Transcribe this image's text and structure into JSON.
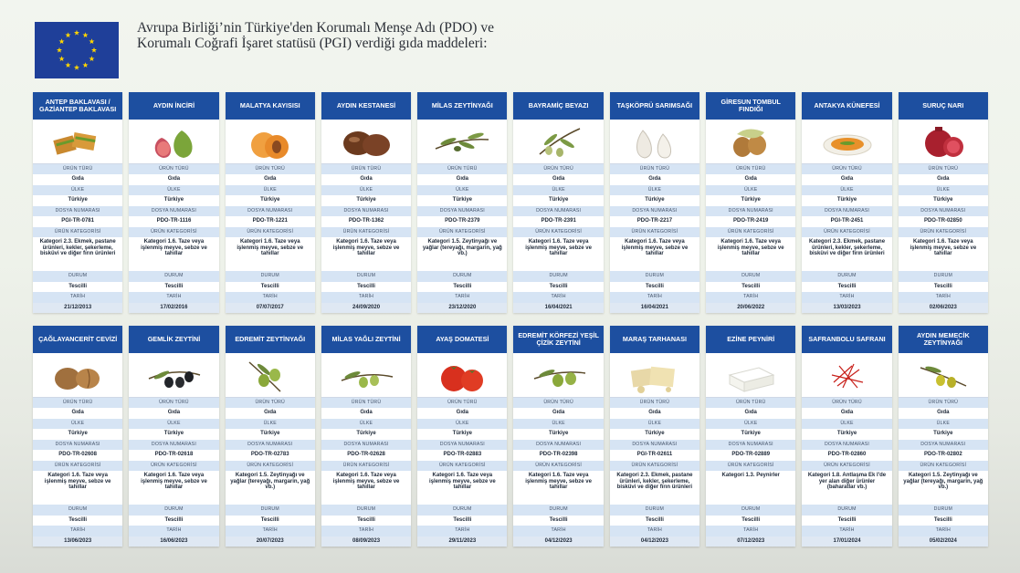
{
  "header": {
    "title": "Avrupa Birliği’nin Türkiye'den Korumalı Menşe Adı (PDO) ve Korumalı Coğrafi İşaret statüsü (PGI) verdiği gıda maddeleri:",
    "flag": "eu-flag"
  },
  "labels": {
    "type": "ÜRÜN TÜRÜ",
    "country": "ÜLKE",
    "file": "DOSYA NUMARASI",
    "category": "ÜRÜN KATEGORİSİ",
    "status": "DURUM",
    "date": "TARİH"
  },
  "products": [
    {
      "name": "ANTEP BAKLAVASI / GAZİANTEP BAKLAVASI",
      "icon": "baklava-icon",
      "type": "Gıda",
      "country": "Türkiye",
      "file": "PGI-TR-0781",
      "category": "Kategori 2.3. Ekmek, pastane ürünleri, kekler, şekerleme, bisküvi ve diğer fırın ürünleri",
      "status": "Tescilli",
      "date": "21/12/2013"
    },
    {
      "name": "AYDIN İNCİRİ",
      "icon": "fig-icon",
      "type": "Gıda",
      "country": "Türkiye",
      "file": "PDO-TR-1116",
      "category": "Kategori 1.6. Taze veya işlenmiş meyve, sebze ve tahıllar",
      "status": "Tescilli",
      "date": "17/02/2016"
    },
    {
      "name": "MALATYA KAYISISI",
      "icon": "apricot-icon",
      "type": "Gıda",
      "country": "Türkiye",
      "file": "PDO-TR-1221",
      "category": "Kategori 1.6. Taze veya işlenmiş meyve, sebze ve tahıllar",
      "status": "Tescilli",
      "date": "07/07/2017"
    },
    {
      "name": "AYDIN KESTANESİ",
      "icon": "chestnut-icon",
      "type": "Gıda",
      "country": "Türkiye",
      "file": "PDO-TR-1362",
      "category": "Kategori 1.6. Taze veya işlenmiş meyve, sebze ve tahıllar",
      "status": "Tescilli",
      "date": "24/09/2020"
    },
    {
      "name": "MİLAS ZEYTİNYAĞI",
      "icon": "olive-branch-icon",
      "type": "Gıda",
      "country": "Türkiye",
      "file": "PDO-TR-2379",
      "category": "Kategori 1.5. Zeytinyağı ve yağlar (tereyağı, margarin, yağ vb.)",
      "status": "Tescilli",
      "date": "23/12/2020"
    },
    {
      "name": "BAYRAMİÇ BEYAZI",
      "icon": "white-olive-icon",
      "type": "Gıda",
      "country": "Türkiye",
      "file": "PDO-TR-2391",
      "category": "Kategori 1.6. Taze veya işlenmiş meyve, sebze ve tahıllar",
      "status": "Tescilli",
      "date": "16/04/2021"
    },
    {
      "name": "TAŞKÖPRÜ SARIMSAĞI",
      "icon": "garlic-icon",
      "type": "Gıda",
      "country": "Türkiye",
      "file": "PDO-TR-2217",
      "category": "Kategori 1.6. Taze veya işlenmiş meyve, sebze ve tahıllar",
      "status": "Tescilli",
      "date": "16/04/2021"
    },
    {
      "name": "GİRESUN TOMBUL FINDIĞI",
      "icon": "hazelnut-icon",
      "type": "Gıda",
      "country": "Türkiye",
      "file": "PDO-TR-2419",
      "category": "Kategori 1.6. Taze veya işlenmiş meyve, sebze ve tahıllar",
      "status": "Tescilli",
      "date": "20/06/2022"
    },
    {
      "name": "ANTAKYA KÜNEFESİ",
      "icon": "kunefe-icon",
      "type": "Gıda",
      "country": "Türkiye",
      "file": "PGI-TR-2451",
      "category": "Kategori 2.3. Ekmek, pastane ürünleri, kekler, şekerleme, bisküvi ve diğer fırın ürünleri",
      "status": "Tescilli",
      "date": "13/03/2023"
    },
    {
      "name": "SURUÇ NARI",
      "icon": "pomegranate-icon",
      "type": "Gıda",
      "country": "Türkiye",
      "file": "PDO-TR-02850",
      "category": "Kategori 1.6. Taze veya işlenmiş meyve, sebze ve tahıllar",
      "status": "Tescilli",
      "date": "02/06/2023"
    },
    {
      "name": "ÇAĞLAYANCERİT CEVİZİ",
      "icon": "walnut-icon",
      "type": "Gıda",
      "country": "Türkiye",
      "file": "PDO-TR-02608",
      "category": "Kategori 1.6. Taze veya işlenmiş meyve, sebze ve tahıllar",
      "status": "Tescilli",
      "date": "13/06/2023"
    },
    {
      "name": "GEMLİK ZEYTİNİ",
      "icon": "black-olive-icon",
      "type": "Gıda",
      "country": "Türkiye",
      "file": "PDO-TR-02618",
      "category": "Kategori 1.6. Taze veya işlenmiş meyve, sebze ve tahıllar",
      "status": "Tescilli",
      "date": "16/06/2023"
    },
    {
      "name": "EDREMİT ZEYTİNYAĞI",
      "icon": "green-olive-icon",
      "type": "Gıda",
      "country": "Türkiye",
      "file": "PDO-TR-02783",
      "category": "Kategori 1.5. Zeytinyağı ve yağlar (tereyağı, margarin, yağ vb.)",
      "status": "Tescilli",
      "date": "20/07/2023"
    },
    {
      "name": "MİLAS YAĞLI ZEYTİNİ",
      "icon": "olive-icon",
      "type": "Gıda",
      "country": "Türkiye",
      "file": "PDO-TR-02628",
      "category": "Kategori 1.6. Taze veya işlenmiş meyve, sebze ve tahıllar",
      "status": "Tescilli",
      "date": "08/09/2023"
    },
    {
      "name": "AYAŞ DOMATESİ",
      "icon": "tomato-icon",
      "type": "Gıda",
      "country": "Türkiye",
      "file": "PDO-TR-02883",
      "category": "Kategori 1.6. Taze veya işlenmiş meyve, sebze ve tahıllar",
      "status": "Tescilli",
      "date": "29/11/2023"
    },
    {
      "name": "EDREMİT KÖRFEZİ YEŞİL ÇİZİK ZEYTİNİ",
      "icon": "cracked-olive-icon",
      "type": "Gıda",
      "country": "Türkiye",
      "file": "PDO-TR-02398",
      "category": "Kategori 1.6. Taze veya işlenmiş meyve, sebze ve tahıllar",
      "status": "Tescilli",
      "date": "04/12/2023"
    },
    {
      "name": "MARAŞ TARHANASI",
      "icon": "tarhana-icon",
      "type": "Gıda",
      "country": "Türkiye",
      "file": "PGI-TR-02611",
      "category": "Kategori 2.3. Ekmek, pastane ürünleri, kekler, şekerleme, bisküvi ve diğer fırın ürünleri",
      "status": "Tescilli",
      "date": "04/12/2023"
    },
    {
      "name": "EZİNE PEYNİRİ",
      "icon": "cheese-icon",
      "type": "Gıda",
      "country": "Türkiye",
      "file": "PDO-TR-02889",
      "category": "Kategori 1.3. Peynirler",
      "status": "Tescilli",
      "date": "07/12/2023"
    },
    {
      "name": "SAFRANBOLU SAFRANI",
      "icon": "saffron-icon",
      "type": "Gıda",
      "country": "Türkiye",
      "file": "PDO-TR-02860",
      "category": "Kategori 1.8. Antlaşma Ek I'de yer alan diğer ürünler (baharatlar vb.)",
      "status": "Tescilli",
      "date": "17/01/2024"
    },
    {
      "name": "AYDIN MEMECİK ZEYTİNYAĞI",
      "icon": "olive-oil-icon",
      "type": "Gıda",
      "country": "Türkiye",
      "file": "PDO-TR-02802",
      "category": "Kategori 1.5. Zeytinyağı ve yağlar (tereyağı, margarin, yağ vb.)",
      "status": "Tescilli",
      "date": "05/02/2024"
    }
  ],
  "colors": {
    "header_blue": "#1d4fa0",
    "label_band": "#d6e4f4",
    "flag_blue": "#1f3f99",
    "flag_star": "#ffd500"
  }
}
